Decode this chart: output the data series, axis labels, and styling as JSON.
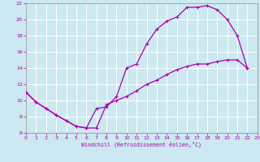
{
  "xlabel": "Windchill (Refroidissement éolien,°C)",
  "xlim": [
    0,
    23
  ],
  "ylim": [
    6,
    22
  ],
  "xticks": [
    0,
    1,
    2,
    3,
    4,
    5,
    6,
    7,
    8,
    9,
    10,
    11,
    12,
    13,
    14,
    15,
    16,
    17,
    18,
    19,
    20,
    21,
    22,
    23
  ],
  "yticks": [
    6,
    8,
    10,
    12,
    14,
    16,
    18,
    20,
    22
  ],
  "bg_color": "#cce8f0",
  "line_color": "#aa00aa",
  "line1_x": [
    0,
    1,
    2,
    3,
    4,
    5,
    6,
    7,
    8,
    9,
    10,
    11,
    12,
    13,
    14,
    15,
    16,
    17,
    18,
    19,
    20,
    21,
    22
  ],
  "line1_y": [
    11,
    9.8,
    9.0,
    8.2,
    7.5,
    6.8,
    6.6,
    9.0,
    9.2,
    10.5,
    14.0,
    14.5,
    17.0,
    18.8,
    19.8,
    20.3,
    21.5,
    21.5,
    21.7,
    21.2,
    20.0,
    18.0,
    14.0
  ],
  "line2_x": [
    0,
    1,
    2,
    3,
    4,
    5,
    6,
    7,
    8,
    9,
    10,
    11,
    12,
    13,
    14,
    15,
    16,
    17,
    18,
    19,
    20,
    21,
    22
  ],
  "line2_y": [
    11,
    9.8,
    9.0,
    8.2,
    7.5,
    6.8,
    6.6,
    6.6,
    9.5,
    10.0,
    10.5,
    11.2,
    12.0,
    12.5,
    13.2,
    13.8,
    14.2,
    14.5,
    14.5,
    14.8,
    15.0,
    15.0,
    14.0
  ]
}
